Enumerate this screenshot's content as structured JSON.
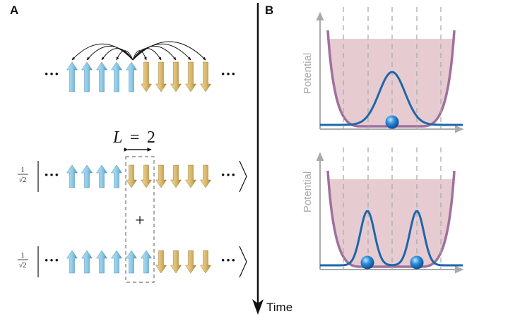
{
  "panel_a": {
    "label": "A",
    "ellipsis": "···",
    "coupling_symbol": "L",
    "equals": "=",
    "coupling_value": "2",
    "superposition_plus": "+",
    "norm_numerator": "1",
    "norm_denominator": "√2",
    "rows": [
      {
        "name": "initial-chain",
        "spins": [
          "up",
          "up",
          "up",
          "up",
          "up",
          "down",
          "down",
          "down",
          "down",
          "down"
        ]
      },
      {
        "name": "state-1",
        "spins": [
          "up",
          "up",
          "up",
          "up",
          "down",
          "down",
          "down",
          "down",
          "down",
          "down"
        ]
      },
      {
        "name": "state-2",
        "spins": [
          "up",
          "up",
          "up",
          "up",
          "up",
          "up",
          "down",
          "down",
          "down",
          "down"
        ]
      }
    ],
    "colors": {
      "spin_up": "#8ec9e6",
      "spin_down": "#d9b66a",
      "frame": "#777777"
    }
  },
  "time_axis": {
    "label": "Time"
  },
  "panel_b": {
    "label": "B",
    "plots": [
      {
        "ylabel": "Potential",
        "wave": "single-peak",
        "particles": 1
      },
      {
        "ylabel": "Potential",
        "wave": "double-peak",
        "particles": 2
      }
    ],
    "colors": {
      "well_fill": "#e3c6cc",
      "well_stroke": "#a0709c",
      "wave": "#1f66a8",
      "particle": "#2e8fdb",
      "axis": "#aaaaaa"
    }
  }
}
